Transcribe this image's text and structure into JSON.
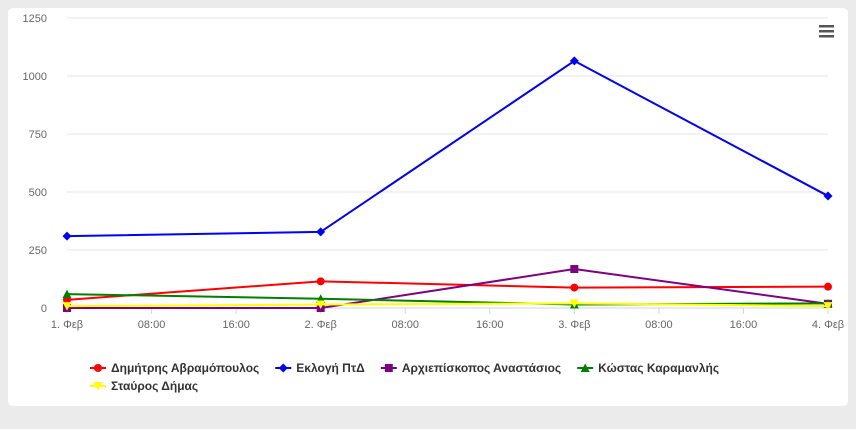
{
  "menu_icon": "hamburger-menu-icon",
  "chart_data": {
    "type": "line",
    "x_ticks": [
      "1. Φεβ",
      "08:00",
      "16:00",
      "2. Φεβ",
      "08:00",
      "16:00",
      "3. Φεβ",
      "08:00",
      "16:00",
      "4. Φεβ"
    ],
    "x_range_hours": [
      0,
      72
    ],
    "y_ticks": [
      "0",
      "250",
      "500",
      "750",
      "1000",
      "1250"
    ],
    "ylim": [
      0,
      1250
    ],
    "grid": "horizontal",
    "legend_position": "bottom",
    "series": [
      {
        "name": "Δημήτρης Αβραμόπουλος",
        "color": "#ff0000",
        "marker": "circle",
        "points": [
          {
            "x": "1. Φεβ",
            "y": 35
          },
          {
            "x": "2. Φεβ",
            "y": 115
          },
          {
            "x": "3. Φεβ",
            "y": 88
          },
          {
            "x": "4. Φεβ",
            "y": 92
          }
        ]
      },
      {
        "name": "Εκλογή ΠτΔ",
        "color": "#0000ff",
        "marker": "diamond",
        "points": [
          {
            "x": "1. Φεβ",
            "y": 310
          },
          {
            "x": "2. Φεβ",
            "y": 328
          },
          {
            "x": "3. Φεβ",
            "y": 1065
          },
          {
            "x": "4. Φεβ",
            "y": 483
          }
        ]
      },
      {
        "name": "Αρχιεπίσκοπος Αναστάσιος",
        "color": "#800080",
        "marker": "square",
        "points": [
          {
            "x": "1. Φεβ",
            "y": 0
          },
          {
            "x": "2. Φεβ",
            "y": 0
          },
          {
            "x": "3. Φεβ",
            "y": 168
          },
          {
            "x": "4. Φεβ",
            "y": 18
          }
        ]
      },
      {
        "name": "Κώστας Καραμανλής",
        "color": "#008000",
        "marker": "triangle",
        "points": [
          {
            "x": "1. Φεβ",
            "y": 60
          },
          {
            "x": "2. Φεβ",
            "y": 40
          },
          {
            "x": "3. Φεβ",
            "y": 15
          },
          {
            "x": "4. Φεβ",
            "y": 20
          }
        ]
      },
      {
        "name": "Σταύρος Δήμας",
        "color": "#ffff00",
        "marker": "triangle-down",
        "points": [
          {
            "x": "1. Φεβ",
            "y": 8
          },
          {
            "x": "2. Φεβ",
            "y": 15
          },
          {
            "x": "3. Φεβ",
            "y": 20
          },
          {
            "x": "4. Φεβ",
            "y": 8
          }
        ]
      }
    ]
  }
}
